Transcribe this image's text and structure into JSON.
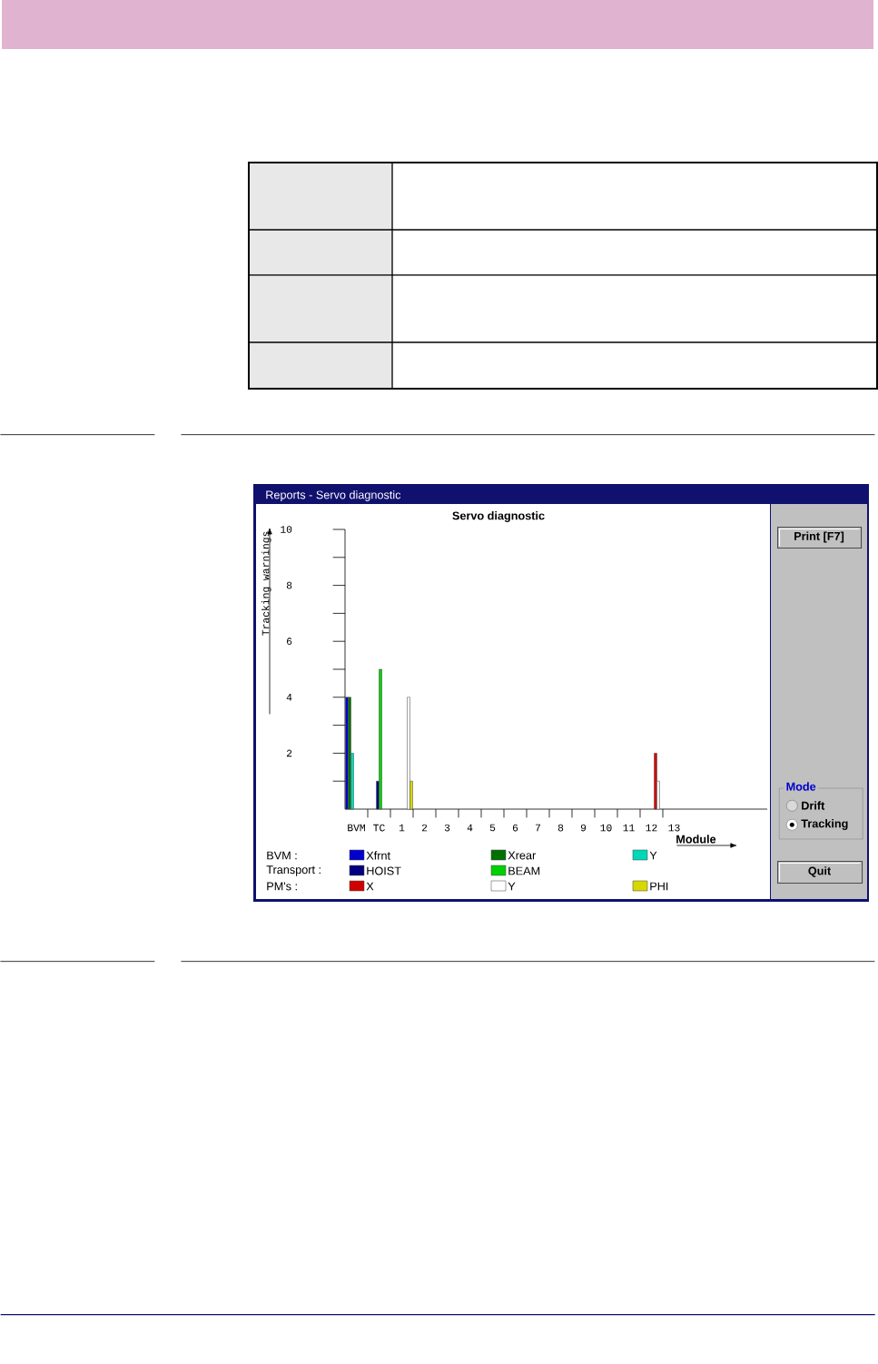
{
  "chart_data": {
    "type": "bar",
    "title": "Servo diagnostic",
    "xlabel": "Module",
    "ylabel": "Tracking warnings",
    "categories": [
      "BVM",
      "TC",
      "1",
      "2",
      "3",
      "4",
      "5",
      "6",
      "7",
      "8",
      "9",
      "10",
      "11",
      "12",
      "13"
    ],
    "series": [
      {
        "name": "Xfrnt",
        "color": "#0000cc",
        "values": [
          4,
          null,
          null,
          null,
          null,
          null,
          null,
          null,
          null,
          null,
          null,
          null,
          null,
          null,
          null
        ]
      },
      {
        "name": "Xrear",
        "color": "#007000",
        "values": [
          4,
          null,
          null,
          null,
          null,
          null,
          null,
          null,
          null,
          null,
          null,
          null,
          null,
          null,
          null
        ]
      },
      {
        "name": "Y",
        "color": "#00d8b8",
        "values": [
          2,
          null,
          null,
          null,
          null,
          null,
          null,
          null,
          null,
          null,
          null,
          null,
          null,
          null,
          null
        ]
      },
      {
        "name": "HOIST",
        "color": "#000080",
        "values": [
          null,
          1,
          null,
          null,
          null,
          null,
          null,
          null,
          null,
          null,
          null,
          null,
          null,
          null,
          null
        ]
      },
      {
        "name": "BEAM",
        "color": "#00d000",
        "values": [
          null,
          5,
          null,
          null,
          null,
          null,
          null,
          null,
          null,
          null,
          null,
          null,
          null,
          null,
          null
        ]
      },
      {
        "name": "X",
        "color": "#d00000",
        "values": [
          null,
          null,
          null,
          null,
          null,
          null,
          null,
          null,
          null,
          null,
          null,
          null,
          null,
          2,
          null
        ]
      },
      {
        "name": "Y",
        "color": "#ffffff",
        "values": [
          null,
          null,
          4,
          null,
          null,
          null,
          null,
          null,
          null,
          null,
          null,
          null,
          null,
          1,
          null
        ]
      },
      {
        "name": "PHI",
        "color": "#d8d800",
        "values": [
          null,
          null,
          1,
          null,
          null,
          null,
          null,
          null,
          null,
          null,
          null,
          null,
          null,
          null,
          null
        ]
      }
    ],
    "ylim": [
      0,
      10
    ],
    "yticks": [
      {
        "value": 1,
        "label": null
      },
      2,
      {
        "value": 3,
        "label": null
      },
      4,
      {
        "value": 5,
        "label": null
      },
      6,
      {
        "value": 7,
        "label": null
      },
      8,
      {
        "value": 9,
        "label": null
      },
      10
    ],
    "legend": "bottom",
    "annotations": [
      "Reports - Servo diagnostic",
      "BVM :",
      "Transport :",
      "PM's :",
      "Print [F7]",
      "Mode",
      "Drift",
      "Tracking",
      "Quit"
    ]
  }
}
